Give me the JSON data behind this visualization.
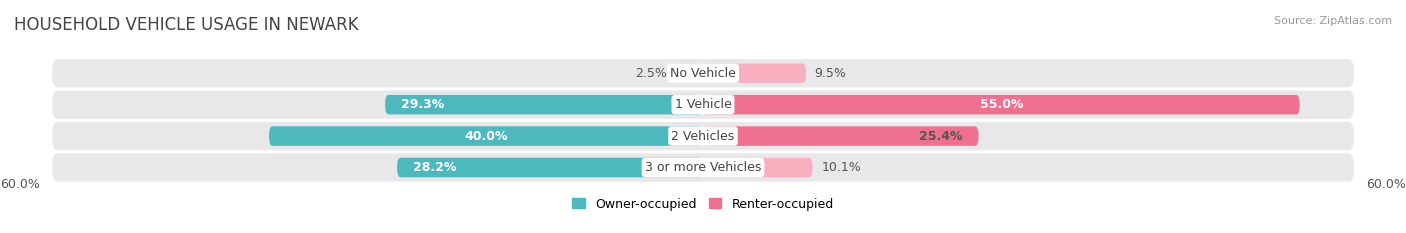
{
  "title": "HOUSEHOLD VEHICLE USAGE IN NEWARK",
  "source": "Source: ZipAtlas.com",
  "categories": [
    "No Vehicle",
    "1 Vehicle",
    "2 Vehicles",
    "3 or more Vehicles"
  ],
  "owner_values": [
    2.5,
    29.3,
    40.0,
    28.2
  ],
  "renter_values": [
    9.5,
    55.0,
    25.4,
    10.1
  ],
  "owner_color": "#4db8be",
  "renter_color": "#f07090",
  "owner_color_light": "#a8dde0",
  "renter_color_light": "#f8b0c0",
  "owner_label": "Owner-occupied",
  "renter_label": "Renter-occupied",
  "xlim": 60.0,
  "axis_label_left": "60.0%",
  "axis_label_right": "60.0%",
  "background_color": "#ffffff",
  "bar_background_color": "#e8e8ea",
  "title_fontsize": 12,
  "source_fontsize": 8,
  "label_fontsize": 9,
  "category_fontsize": 9,
  "bar_height": 0.62
}
